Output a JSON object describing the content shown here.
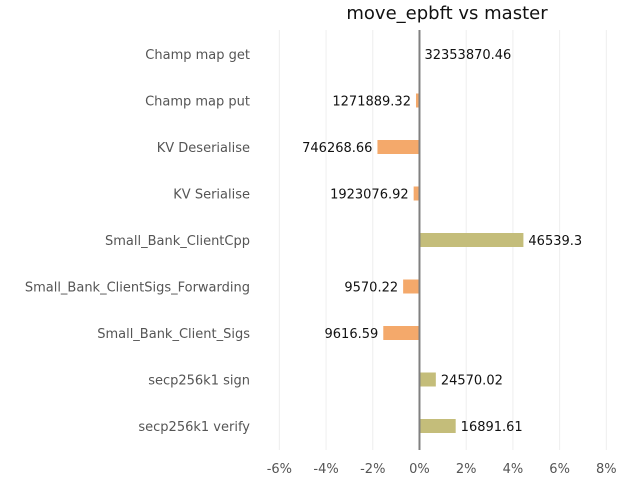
{
  "chart_data": {
    "type": "bar",
    "orientation": "horizontal",
    "title": "move_epbft vs master",
    "xlabel": "",
    "ylabel": "",
    "xlim": [
      -7,
      8.5
    ],
    "xticks": [
      -6,
      -4,
      -2,
      0,
      2,
      4,
      6,
      8
    ],
    "xtick_labels": [
      "-6%",
      "-4%",
      "-2%",
      "0%",
      "2%",
      "4%",
      "6%",
      "8%"
    ],
    "grid": "vertical",
    "legend": "none",
    "colors": {
      "positive": "#c4bd7a",
      "negative": "#f4a96b",
      "zero_line": "#808080"
    },
    "categories": [
      "Champ map get",
      "Champ map put",
      "KV Deserialise",
      "KV Serialise",
      "Small_Bank_ClientCpp",
      "Small_Bank_ClientSigs_Forwarding",
      "Small_Bank_Client_Sigs",
      "secp256k1 sign",
      "secp256k1 verify"
    ],
    "values": [
      0.0,
      -0.15,
      -1.8,
      -0.25,
      4.45,
      -0.7,
      -1.55,
      0.7,
      1.55
    ],
    "data_labels": [
      "32353870.46",
      "1271889.32",
      "746268.66",
      "1923076.92",
      "46539.3",
      "9570.22",
      "9616.59",
      "24570.02",
      "16891.61"
    ]
  }
}
